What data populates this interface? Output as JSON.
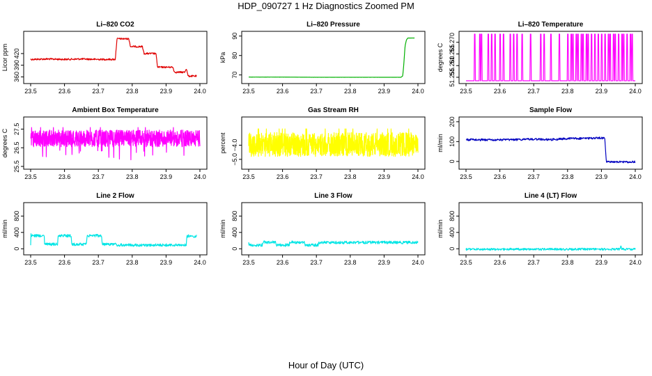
{
  "page": {
    "title": "HDP_090727  1 Hz Diagnostics Zoomed PM",
    "x_axis_title": "Hour of Day (UTC)"
  },
  "chart_data": [
    {
      "type": "line",
      "id": "co2",
      "title": "Li–820 CO2",
      "ylabel": "Licor ppm",
      "color": "#e00000",
      "xlim": [
        23.5,
        24.0
      ],
      "ylim": [
        350,
        470
      ],
      "x_ticks": [
        "23.5",
        "23.6",
        "23.7",
        "23.8",
        "23.9",
        "24.0"
      ],
      "y_ticks": [
        {
          "v": 360,
          "label": "360"
        },
        {
          "v": 390,
          "label": "390"
        },
        {
          "v": 420,
          "label": "420"
        }
      ],
      "style": "step",
      "noise": 1.2,
      "x": [
        23.5,
        23.55,
        23.6,
        23.65,
        23.7,
        23.75,
        23.755,
        23.79,
        23.795,
        23.83,
        23.835,
        23.87,
        23.875,
        23.92,
        23.925,
        23.955,
        23.96,
        23.965,
        23.99
      ],
      "y": [
        405,
        406,
        405,
        406,
        405,
        405,
        458,
        458,
        438,
        438,
        420,
        420,
        385,
        385,
        372,
        372,
        382,
        362,
        362
      ]
    },
    {
      "type": "line",
      "id": "pressure",
      "title": "Li–820 Pressure",
      "ylabel": "kPa",
      "color": "#00b000",
      "xlim": [
        23.5,
        24.0
      ],
      "ylim": [
        67,
        91
      ],
      "x_ticks": [
        "23.5",
        "23.6",
        "23.7",
        "23.8",
        "23.9",
        "24.0"
      ],
      "y_ticks": [
        {
          "v": 70,
          "label": "70"
        },
        {
          "v": 80,
          "label": "80"
        },
        {
          "v": 90,
          "label": "90"
        }
      ],
      "style": "step",
      "noise": 0.05,
      "x": [
        23.5,
        23.6,
        23.7,
        23.8,
        23.9,
        23.95,
        23.955,
        23.958,
        23.96,
        23.962,
        23.966,
        23.97,
        23.99
      ],
      "y": [
        68.9,
        68.9,
        68.8,
        68.8,
        68.8,
        68.8,
        69.5,
        75,
        80,
        85,
        88,
        89,
        89
      ]
    },
    {
      "type": "line",
      "id": "temperature",
      "title": "Li–820 Temperature",
      "ylabel": "degrees C",
      "color": "#ff00ff",
      "xlim": [
        23.5,
        24.0
      ],
      "ylim": [
        51.2535,
        51.2735
      ],
      "x_ticks": [
        "23.5",
        "23.6",
        "23.7",
        "23.8",
        "23.9",
        "24.0"
      ],
      "y_ticks": [
        {
          "v": 51.255,
          "label": "51.255"
        },
        {
          "v": 51.26,
          "label": "51.260"
        },
        {
          "v": 51.265,
          "label": "51.265"
        },
        {
          "v": 51.27,
          "label": "51.270"
        }
      ],
      "style": "spikes",
      "baseline": 51.2535,
      "peak": 51.2735,
      "spike_x": [
        23.525,
        23.54,
        23.545,
        23.565,
        23.575,
        23.585,
        23.6,
        23.61,
        23.63,
        23.64,
        23.65,
        23.665,
        23.69,
        23.72,
        23.73,
        23.75,
        23.775,
        23.8,
        23.81,
        23.815,
        23.825,
        23.83,
        23.84,
        23.845,
        23.855,
        23.86,
        23.87,
        23.88,
        23.89,
        23.9,
        23.91,
        23.92,
        23.925,
        23.935,
        23.94,
        23.95,
        23.96,
        23.965,
        23.975,
        23.985,
        23.99
      ]
    },
    {
      "type": "line",
      "id": "ambient_box_temp",
      "title": "Ambient Box Temperature",
      "ylabel": "degrees C",
      "color": "#ff00ff",
      "xlim": [
        23.5,
        24.0
      ],
      "ylim": [
        25.5,
        28.0
      ],
      "x_ticks": [
        "23.5",
        "23.6",
        "23.7",
        "23.8",
        "23.9",
        "24.0"
      ],
      "y_ticks": [
        {
          "v": 25.5,
          "label": "25.5"
        },
        {
          "v": 26.5,
          "label": "26.5"
        },
        {
          "v": 27.5,
          "label": "27.5"
        }
      ],
      "style": "noise",
      "center": 27.0,
      "amp": 0.45,
      "dip": 0.9
    },
    {
      "type": "line",
      "id": "gas_stream_rh",
      "title": "Gas Stream RH",
      "ylabel": "percent",
      "color": "#ffff00",
      "xlim": [
        23.5,
        24.0
      ],
      "ylim": [
        -5.5,
        -2.2
      ],
      "x_ticks": [
        "23.5",
        "23.6",
        "23.7",
        "23.8",
        "23.9",
        "24.0"
      ],
      "y_ticks": [
        {
          "v": -5,
          "label": "−5.0"
        },
        {
          "v": -4,
          "label": "−4.0"
        }
      ],
      "style": "noise",
      "center": -3.95,
      "amp": 0.85,
      "dip": 0.6
    },
    {
      "type": "line",
      "id": "sample_flow",
      "title": "Sample Flow",
      "ylabel": "ml/min",
      "color": "#0000c0",
      "xlim": [
        23.5,
        24.0
      ],
      "ylim": [
        -25,
        210
      ],
      "x_ticks": [
        "23.5",
        "23.6",
        "23.7",
        "23.8",
        "23.9",
        "24.0"
      ],
      "y_ticks": [
        {
          "v": 0,
          "label": "0"
        },
        {
          "v": 100,
          "label": "100"
        },
        {
          "v": 200,
          "label": "200"
        }
      ],
      "style": "step",
      "noise": 1.5,
      "x": [
        23.5,
        23.6,
        23.7,
        23.75,
        23.8,
        23.85,
        23.9,
        23.91,
        23.912,
        23.915,
        23.92,
        23.95,
        24.0
      ],
      "y": [
        110,
        108,
        112,
        110,
        115,
        116,
        118,
        118,
        60,
        -5,
        -2,
        -3,
        -2
      ]
    },
    {
      "type": "line",
      "id": "line2_flow",
      "title": "Line 2 Flow",
      "ylabel": "ml/min",
      "color": "#00e5e5",
      "xlim": [
        23.5,
        24.0
      ],
      "ylim": [
        -80,
        1060
      ],
      "x_ticks": [
        "23.5",
        "23.6",
        "23.7",
        "23.8",
        "23.9",
        "24.0"
      ],
      "y_ticks": [
        {
          "v": 0,
          "label": "0"
        },
        {
          "v": 400,
          "label": "400"
        },
        {
          "v": 800,
          "label": "800"
        }
      ],
      "style": "step",
      "noise": 2,
      "x": [
        23.5,
        23.501,
        23.502,
        23.54,
        23.541,
        23.58,
        23.581,
        23.62,
        23.621,
        23.665,
        23.666,
        23.71,
        23.711,
        23.75,
        23.751,
        23.96,
        23.961,
        23.99
      ],
      "y": [
        120,
        350,
        320,
        320,
        110,
        110,
        320,
        320,
        110,
        110,
        320,
        320,
        110,
        110,
        90,
        90,
        310,
        310
      ]
    },
    {
      "type": "line",
      "id": "line3_flow",
      "title": "Line 3 Flow",
      "ylabel": "ml/min",
      "color": "#00e5e5",
      "xlim": [
        23.5,
        24.0
      ],
      "ylim": [
        -80,
        1060
      ],
      "x_ticks": [
        "23.5",
        "23.6",
        "23.7",
        "23.8",
        "23.9",
        "24.0"
      ],
      "y_ticks": [
        {
          "v": 0,
          "label": "0"
        },
        {
          "v": 400,
          "label": "400"
        },
        {
          "v": 800,
          "label": "800"
        }
      ],
      "style": "step",
      "noise": 2,
      "x": [
        23.5,
        23.501,
        23.502,
        23.54,
        23.541,
        23.58,
        23.581,
        23.62,
        23.621,
        23.665,
        23.666,
        23.705,
        23.706,
        24.0
      ],
      "y": [
        190,
        90,
        90,
        90,
        160,
        160,
        90,
        90,
        160,
        160,
        90,
        90,
        155,
        155
      ]
    },
    {
      "type": "line",
      "id": "line4_flow",
      "title": "Line 4 (LT) Flow",
      "ylabel": "ml/min",
      "color": "#00e5e5",
      "xlim": [
        23.5,
        24.0
      ],
      "ylim": [
        -80,
        1060
      ],
      "x_ticks": [
        "23.5",
        "23.6",
        "23.7",
        "23.8",
        "23.9",
        "24.0"
      ],
      "y_ticks": [
        {
          "v": 0,
          "label": "0"
        },
        {
          "v": 400,
          "label": "400"
        },
        {
          "v": 800,
          "label": "800"
        }
      ],
      "style": "step",
      "noise": 1.5,
      "x": [
        23.5,
        23.6,
        23.7,
        23.8,
        23.9,
        23.955,
        23.957,
        23.96,
        23.963,
        24.0
      ],
      "y": [
        -10,
        -10,
        -10,
        -10,
        -10,
        -10,
        90,
        -10,
        -10,
        -10
      ]
    }
  ]
}
